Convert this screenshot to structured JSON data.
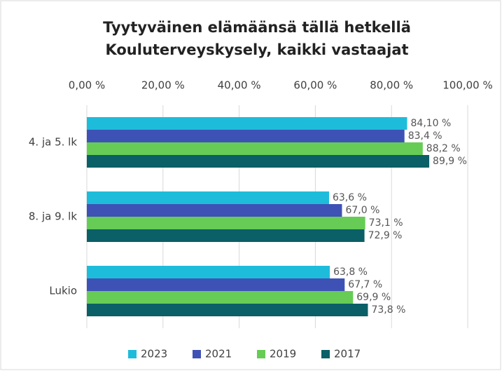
{
  "chart_data": {
    "type": "bar",
    "orientation": "horizontal",
    "title": [
      "Tyytyväinen elämäänsä tällä hetkellä",
      "Kouluterveyskysely, kaikki vastaajat"
    ],
    "categories": [
      "4. ja 5. lk",
      "8. ja 9. lk",
      "Lukio"
    ],
    "series": [
      {
        "name": "2023",
        "color": "#1ebcdb",
        "values": [
          84.1,
          63.6,
          63.8
        ],
        "value_labels": [
          "84,10 %",
          "63,6 %",
          "63,8 %"
        ]
      },
      {
        "name": "2021",
        "color": "#3e52b6",
        "values": [
          83.4,
          67.0,
          67.7
        ],
        "value_labels": [
          "83,4 %",
          "67,0 %",
          "67,7 %"
        ]
      },
      {
        "name": "2019",
        "color": "#66cc55",
        "values": [
          88.2,
          73.1,
          69.9
        ],
        "value_labels": [
          "88,2 %",
          "73,1 %",
          "69,9 %"
        ]
      },
      {
        "name": "2017",
        "color": "#0b5f66",
        "values": [
          89.9,
          72.9,
          73.8
        ],
        "value_labels": [
          "89,9 %",
          "72,9 %",
          "73,8 %"
        ]
      }
    ],
    "xlim": [
      0,
      100
    ],
    "xticks": [
      {
        "value": 0,
        "label": "0,00 %"
      },
      {
        "value": 20,
        "label": "20,00 %"
      },
      {
        "value": 40,
        "label": "40,00 %"
      },
      {
        "value": 60,
        "label": "60,00 %"
      },
      {
        "value": 80,
        "label": "80,00 %"
      },
      {
        "value": 100,
        "label": "100,00 %"
      }
    ],
    "grid": true,
    "legend": "bottom"
  }
}
